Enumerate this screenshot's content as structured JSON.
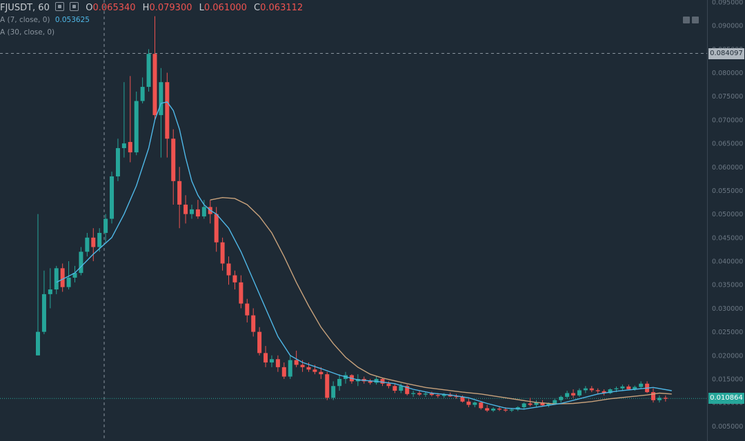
{
  "header": {
    "symbol": "FJUSDT, 60",
    "open_label": "O",
    "open_value": "0.065340",
    "high_label": "H",
    "high_value": "0.079300",
    "low_label": "L",
    "low_value": "0.061000",
    "close_label": "C",
    "close_value": "0.063112",
    "ma_fast_label": "A (7, close, 0)",
    "ma_fast_value": "0.053625",
    "ma_slow_label": "A (30, close, 0)"
  },
  "axis": {
    "crosshair_price": "0.084097",
    "last_price": "0.010864"
  },
  "colors": {
    "background": "#1e2a35",
    "up": "#26a69a",
    "down": "#ef5350",
    "ma_fast": "#4fb8e8",
    "ma_slow": "#c8a27c",
    "grid_text": "#6c7884"
  },
  "chart_data": {
    "type": "candlestick",
    "ylim": [
      0.003,
      0.095
    ],
    "y_ticks": [
      "0.095000",
      "0.090000",
      "0.085000",
      "0.080000",
      "0.075000",
      "0.070000",
      "0.065000",
      "0.060000",
      "0.055000",
      "0.050000",
      "0.045000",
      "0.040000",
      "0.035000",
      "0.030000",
      "0.025000",
      "0.020000",
      "0.015000",
      "0.010000",
      "0.005000"
    ],
    "crosshair_value": 0.084097,
    "last_value": 0.010864,
    "candles": [
      [
        0.02,
        0.05,
        0.02,
        0.025
      ],
      [
        0.025,
        0.038,
        0.0245,
        0.033
      ],
      [
        0.033,
        0.0385,
        0.03,
        0.034
      ],
      [
        0.034,
        0.039,
        0.033,
        0.0385
      ],
      [
        0.0385,
        0.0395,
        0.0335,
        0.0345
      ],
      [
        0.0345,
        0.04,
        0.034,
        0.0365
      ],
      [
        0.0365,
        0.039,
        0.0355,
        0.0375
      ],
      [
        0.0375,
        0.043,
        0.037,
        0.042
      ],
      [
        0.042,
        0.046,
        0.041,
        0.045
      ],
      [
        0.045,
        0.047,
        0.04,
        0.043
      ],
      [
        0.043,
        0.047,
        0.042,
        0.046
      ],
      [
        0.046,
        0.05,
        0.044,
        0.049
      ],
      [
        0.049,
        0.059,
        0.048,
        0.058
      ],
      [
        0.058,
        0.066,
        0.057,
        0.064
      ],
      [
        0.064,
        0.078,
        0.062,
        0.065
      ],
      [
        0.0653,
        0.0793,
        0.061,
        0.0631
      ],
      [
        0.0631,
        0.076,
        0.0625,
        0.074
      ],
      [
        0.074,
        0.079,
        0.0735,
        0.077
      ],
      [
        0.077,
        0.085,
        0.076,
        0.084
      ],
      [
        0.084,
        0.092,
        0.07,
        0.071
      ],
      [
        0.071,
        0.081,
        0.062,
        0.078
      ],
      [
        0.078,
        0.08,
        0.062,
        0.066
      ],
      [
        0.066,
        0.068,
        0.052,
        0.057
      ],
      [
        0.057,
        0.06,
        0.047,
        0.052
      ],
      [
        0.052,
        0.054,
        0.048,
        0.05
      ],
      [
        0.05,
        0.052,
        0.049,
        0.051
      ],
      [
        0.051,
        0.053,
        0.049,
        0.0495
      ],
      [
        0.0495,
        0.053,
        0.049,
        0.0515
      ],
      [
        0.0515,
        0.053,
        0.048,
        0.05
      ],
      [
        0.05,
        0.0515,
        0.042,
        0.044
      ],
      [
        0.044,
        0.045,
        0.038,
        0.0395
      ],
      [
        0.0395,
        0.041,
        0.035,
        0.037
      ],
      [
        0.037,
        0.038,
        0.034,
        0.0355
      ],
      [
        0.0355,
        0.037,
        0.03,
        0.031
      ],
      [
        0.031,
        0.032,
        0.027,
        0.0285
      ],
      [
        0.0285,
        0.03,
        0.024,
        0.025
      ],
      [
        0.025,
        0.026,
        0.02,
        0.0205
      ],
      [
        0.0205,
        0.022,
        0.0175,
        0.0185
      ],
      [
        0.0185,
        0.02,
        0.0175,
        0.0192
      ],
      [
        0.0192,
        0.02,
        0.0165,
        0.0175
      ],
      [
        0.0175,
        0.0185,
        0.015,
        0.0155
      ],
      [
        0.0155,
        0.02,
        0.015,
        0.019
      ],
      [
        0.019,
        0.021,
        0.0175,
        0.018
      ],
      [
        0.018,
        0.019,
        0.0165,
        0.0175
      ],
      [
        0.0175,
        0.0185,
        0.0165,
        0.017
      ],
      [
        0.017,
        0.018,
        0.016,
        0.0165
      ],
      [
        0.0165,
        0.0175,
        0.015,
        0.016
      ],
      [
        0.016,
        0.0165,
        0.0105,
        0.011
      ],
      [
        0.011,
        0.0145,
        0.0105,
        0.0135
      ],
      [
        0.0135,
        0.016,
        0.0125,
        0.015
      ],
      [
        0.015,
        0.0165,
        0.014,
        0.0158
      ],
      [
        0.0158,
        0.016,
        0.014,
        0.0145
      ],
      [
        0.0145,
        0.016,
        0.0135,
        0.015
      ],
      [
        0.015,
        0.0155,
        0.014,
        0.0145
      ],
      [
        0.0145,
        0.015,
        0.0138,
        0.0142
      ],
      [
        0.0142,
        0.0155,
        0.0138,
        0.015
      ],
      [
        0.015,
        0.0152,
        0.0135,
        0.014
      ],
      [
        0.014,
        0.0145,
        0.013,
        0.0135
      ],
      [
        0.0135,
        0.014,
        0.012,
        0.0125
      ],
      [
        0.0125,
        0.014,
        0.012,
        0.0135
      ],
      [
        0.0135,
        0.0138,
        0.0115,
        0.0118
      ],
      [
        0.0118,
        0.0125,
        0.0112,
        0.012
      ],
      [
        0.012,
        0.0125,
        0.0114,
        0.0117
      ],
      [
        0.0117,
        0.0122,
        0.0112,
        0.0119
      ],
      [
        0.0119,
        0.0123,
        0.0113,
        0.0116
      ],
      [
        0.0116,
        0.012,
        0.011,
        0.0114
      ],
      [
        0.0114,
        0.012,
        0.011,
        0.0117
      ],
      [
        0.0117,
        0.0121,
        0.0112,
        0.0113
      ],
      [
        0.0113,
        0.0118,
        0.0108,
        0.0112
      ],
      [
        0.0112,
        0.0115,
        0.01,
        0.0102
      ],
      [
        0.0102,
        0.0108,
        0.009,
        0.0095
      ],
      [
        0.0095,
        0.0102,
        0.009,
        0.01
      ],
      [
        0.01,
        0.0103,
        0.0085,
        0.0088
      ],
      [
        0.0088,
        0.0095,
        0.008,
        0.0083
      ],
      [
        0.0083,
        0.009,
        0.008,
        0.0087
      ],
      [
        0.0087,
        0.0092,
        0.0082,
        0.0085
      ],
      [
        0.0085,
        0.009,
        0.008,
        0.0083
      ],
      [
        0.0083,
        0.0088,
        0.008,
        0.0085
      ],
      [
        0.0085,
        0.0092,
        0.0082,
        0.009
      ],
      [
        0.009,
        0.01,
        0.0085,
        0.0098
      ],
      [
        0.0098,
        0.011,
        0.0092,
        0.0095
      ],
      [
        0.0095,
        0.0105,
        0.009,
        0.01
      ],
      [
        0.01,
        0.0105,
        0.0092,
        0.0094
      ],
      [
        0.0094,
        0.01,
        0.009,
        0.0098
      ],
      [
        0.0098,
        0.0108,
        0.0095,
        0.0105
      ],
      [
        0.0105,
        0.0115,
        0.01,
        0.0112
      ],
      [
        0.0112,
        0.0125,
        0.0108,
        0.012
      ],
      [
        0.012,
        0.0128,
        0.011,
        0.0115
      ],
      [
        0.0115,
        0.013,
        0.0112,
        0.0126
      ],
      [
        0.0126,
        0.0135,
        0.012,
        0.013
      ],
      [
        0.013,
        0.0135,
        0.0122,
        0.0126
      ],
      [
        0.0126,
        0.013,
        0.0118,
        0.0124
      ],
      [
        0.0124,
        0.0128,
        0.0115,
        0.012
      ],
      [
        0.012,
        0.013,
        0.0118,
        0.0128
      ],
      [
        0.0128,
        0.0134,
        0.0122,
        0.013
      ],
      [
        0.013,
        0.0138,
        0.0125,
        0.0134
      ],
      [
        0.0134,
        0.0138,
        0.0126,
        0.0128
      ],
      [
        0.0128,
        0.0136,
        0.0125,
        0.0133
      ],
      [
        0.0133,
        0.0145,
        0.013,
        0.014
      ],
      [
        0.014,
        0.0145,
        0.012,
        0.0122
      ],
      [
        0.0122,
        0.013,
        0.01,
        0.0105
      ],
      [
        0.0105,
        0.0115,
        0.01,
        0.011
      ],
      [
        0.011,
        0.0115,
        0.0102,
        0.0108
      ]
    ],
    "ma_fast": [
      [
        3,
        0.0355
      ],
      [
        6,
        0.0375
      ],
      [
        9,
        0.0415
      ],
      [
        12,
        0.045
      ],
      [
        14,
        0.05
      ],
      [
        16,
        0.056
      ],
      [
        18,
        0.064
      ],
      [
        19,
        0.07
      ],
      [
        20,
        0.0735
      ],
      [
        21,
        0.0738
      ],
      [
        22,
        0.072
      ],
      [
        23,
        0.068
      ],
      [
        24,
        0.062
      ],
      [
        25,
        0.057
      ],
      [
        26,
        0.054
      ],
      [
        27,
        0.052
      ],
      [
        28,
        0.0508
      ],
      [
        29,
        0.05
      ],
      [
        31,
        0.047
      ],
      [
        33,
        0.042
      ],
      [
        35,
        0.036
      ],
      [
        37,
        0.03
      ],
      [
        39,
        0.024
      ],
      [
        41,
        0.02
      ],
      [
        43,
        0.0185
      ],
      [
        46,
        0.0172
      ],
      [
        49,
        0.0158
      ],
      [
        52,
        0.0148
      ],
      [
        55,
        0.0145
      ],
      [
        58,
        0.014
      ],
      [
        61,
        0.0128
      ],
      [
        64,
        0.012
      ],
      [
        67,
        0.0116
      ],
      [
        70,
        0.011
      ],
      [
        73,
        0.0098
      ],
      [
        76,
        0.0088
      ],
      [
        79,
        0.0086
      ],
      [
        82,
        0.0092
      ],
      [
        85,
        0.0098
      ],
      [
        88,
        0.0108
      ],
      [
        91,
        0.0118
      ],
      [
        94,
        0.0124
      ],
      [
        97,
        0.0128
      ],
      [
        100,
        0.0132
      ],
      [
        103,
        0.0125
      ]
    ],
    "ma_slow": [
      [
        28,
        0.053
      ],
      [
        30,
        0.0535
      ],
      [
        32,
        0.0533
      ],
      [
        34,
        0.052
      ],
      [
        36,
        0.0495
      ],
      [
        38,
        0.046
      ],
      [
        40,
        0.041
      ],
      [
        42,
        0.0355
      ],
      [
        44,
        0.0305
      ],
      [
        46,
        0.026
      ],
      [
        48,
        0.0225
      ],
      [
        50,
        0.0196
      ],
      [
        52,
        0.0175
      ],
      [
        54,
        0.016
      ],
      [
        56,
        0.0152
      ],
      [
        58,
        0.0146
      ],
      [
        60,
        0.014
      ],
      [
        63,
        0.0132
      ],
      [
        66,
        0.0127
      ],
      [
        69,
        0.0122
      ],
      [
        72,
        0.0118
      ],
      [
        75,
        0.0112
      ],
      [
        78,
        0.0106
      ],
      [
        81,
        0.01
      ],
      [
        84,
        0.0097
      ],
      [
        87,
        0.0098
      ],
      [
        90,
        0.0102
      ],
      [
        93,
        0.0108
      ],
      [
        96,
        0.0112
      ],
      [
        99,
        0.0116
      ],
      [
        101,
        0.012
      ],
      [
        103,
        0.0118
      ]
    ]
  }
}
